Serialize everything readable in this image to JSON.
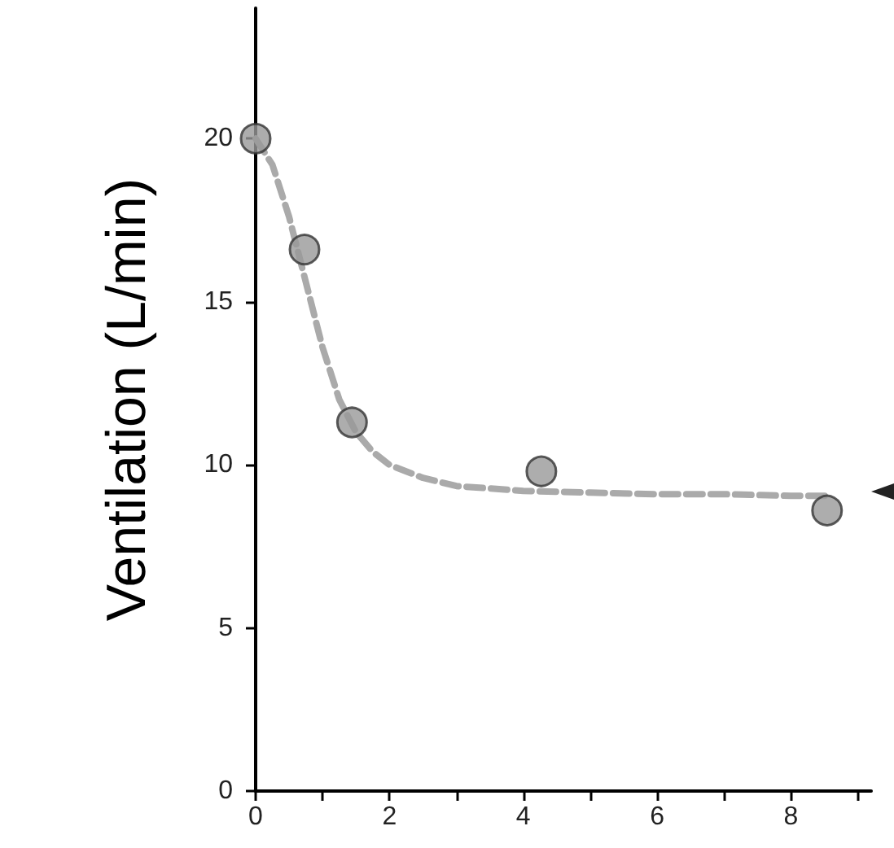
{
  "chart_data": {
    "type": "scatter",
    "ylabel": "Ventilation (L/min)",
    "xlim": [
      0,
      9.2
    ],
    "ylim": [
      0,
      24
    ],
    "xticks": [
      0,
      {
        "value": 1,
        "label": null
      },
      2,
      {
        "value": 3,
        "label": null
      },
      4,
      {
        "value": 5,
        "label": null
      },
      6,
      {
        "value": 7,
        "label": null
      },
      8,
      {
        "value": 9,
        "label": null
      }
    ],
    "yticks": [
      0,
      5,
      10,
      15,
      20
    ],
    "grid": false,
    "marker": "circle",
    "series": [
      {
        "color": "#999999",
        "x": [
          0,
          0.73,
          1.44,
          4.27,
          8.54
        ],
        "values": [
          20,
          16.6,
          11.3,
          9.8,
          8.6
        ]
      },
      {
        "type": "line",
        "color": "#aaaaaa",
        "line_style": "dashed",
        "marker": "none",
        "x": [
          0,
          0.25,
          0.5,
          0.75,
          1,
          1.25,
          1.5,
          1.75,
          2,
          2.5,
          3,
          4,
          5,
          6,
          7,
          8,
          8.6
        ],
        "values": [
          20,
          19.2,
          17.6,
          15.6,
          13.6,
          12,
          11,
          10.4,
          10,
          9.6,
          9.35,
          9.2,
          9.15,
          9.1,
          9.1,
          9.05,
          9.05
        ]
      }
    ]
  }
}
